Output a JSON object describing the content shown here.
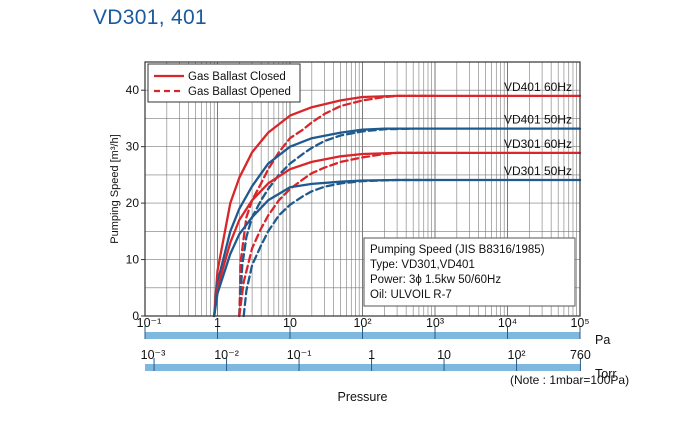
{
  "page_title": "VD301, 401",
  "colors": {
    "closed": "#d9262b",
    "blue": "#1f5a8f",
    "axis_bar": "#7fb8de",
    "grid": "#7a7a7a",
    "title": "#1a5a9e"
  },
  "chart_data": {
    "type": "line",
    "ylabel": "Pumping Speed [m³/h]",
    "xlabel": "Pressure",
    "ylim": [
      0,
      45
    ],
    "yticks": [
      0,
      10,
      20,
      30,
      40
    ],
    "xscale": "log",
    "xlim_pa": [
      0.1,
      100000
    ],
    "xticks_pa": [
      "10⁻¹",
      "1",
      "10",
      "10²",
      "10³",
      "10⁴",
      "10⁵"
    ],
    "xticks_torr": [
      "10⁻³",
      "10⁻²",
      "10⁻¹",
      "1",
      "10",
      "10²",
      "760"
    ],
    "unit_pa": "Pa",
    "unit_torr": "Torr",
    "note": "(Note : 1mbar=100Pa)",
    "grid": true,
    "legend": {
      "placement": "top-left",
      "entries": [
        {
          "label": "Gas Ballast Closed",
          "style": "solid"
        },
        {
          "label": "Gas Ballast Opened",
          "style": "dashed"
        }
      ]
    },
    "series": [
      {
        "name": "VD401 60Hz",
        "color": "red",
        "style": "solid",
        "x": [
          0.9,
          1.0,
          1.5,
          2,
          3,
          5,
          10,
          20,
          50,
          100,
          300,
          1000,
          100000
        ],
        "y": [
          0,
          8,
          20,
          24.5,
          29,
          32.5,
          35.5,
          37,
          38.2,
          38.8,
          39,
          39,
          39
        ]
      },
      {
        "name": "VD401 60Hz",
        "color": "red",
        "style": "dashed",
        "x": [
          2,
          2.1,
          2.5,
          3,
          4,
          5,
          7,
          10,
          15,
          20,
          30,
          50,
          100,
          200,
          300,
          1000
        ],
        "y": [
          0,
          10,
          17.5,
          20.5,
          23.5,
          26,
          29,
          31.5,
          33,
          34.3,
          35.8,
          37.2,
          38.2,
          38.8,
          39,
          39
        ]
      },
      {
        "name": "VD401 50Hz",
        "color": "blue",
        "style": "solid",
        "x": [
          0.9,
          1.0,
          1.5,
          2,
          3,
          5,
          10,
          20,
          50,
          100,
          200,
          500,
          100000
        ],
        "y": [
          0,
          6,
          15,
          19,
          23,
          27,
          30,
          31.5,
          32.5,
          33,
          33.2,
          33.2,
          33.2
        ]
      },
      {
        "name": "VD401 50Hz",
        "color": "blue",
        "style": "dashed",
        "x": [
          2,
          2.2,
          2.5,
          3,
          4,
          5,
          7,
          10,
          15,
          20,
          30,
          50,
          100,
          200,
          500
        ],
        "y": [
          0,
          9,
          14,
          17.5,
          20.5,
          22.5,
          25,
          27,
          28.7,
          29.8,
          31,
          32,
          32.7,
          33.1,
          33.2
        ]
      },
      {
        "name": "VD301 60Hz",
        "color": "red",
        "style": "solid",
        "x": [
          0.9,
          1.0,
          1.5,
          2,
          3,
          5,
          10,
          20,
          50,
          100,
          300,
          1000,
          100000
        ],
        "y": [
          0,
          5,
          13,
          17,
          20.5,
          23.5,
          26,
          27.3,
          28.3,
          28.7,
          28.9,
          28.9,
          28.9
        ]
      },
      {
        "name": "VD301 60Hz",
        "color": "red",
        "style": "dashed",
        "x": [
          2,
          2.3,
          3,
          4,
          5,
          7,
          10,
          15,
          20,
          30,
          50,
          100,
          200,
          300,
          1000
        ],
        "y": [
          0,
          6,
          12,
          15.5,
          17.8,
          20.5,
          22.5,
          24.2,
          25.3,
          26.3,
          27.3,
          28.1,
          28.7,
          28.9,
          28.9
        ]
      },
      {
        "name": "VD301 50Hz",
        "color": "blue",
        "style": "solid",
        "x": [
          0.9,
          1.0,
          1.5,
          2,
          3,
          5,
          10,
          20,
          50,
          100,
          300,
          1000,
          100000
        ],
        "y": [
          0,
          4,
          11,
          14.5,
          17.5,
          20.5,
          22.8,
          23.4,
          23.8,
          24,
          24.1,
          24.1,
          24.1
        ]
      },
      {
        "name": "VD301 50Hz",
        "color": "blue",
        "style": "dashed",
        "x": [
          2.3,
          2.5,
          3,
          4,
          5,
          7,
          10,
          15,
          20,
          30,
          50,
          100,
          300,
          1000
        ],
        "y": [
          0,
          4.5,
          9,
          12.5,
          15,
          17.8,
          19.7,
          21.2,
          22.1,
          22.9,
          23.5,
          23.9,
          24.1,
          24.1
        ]
      }
    ],
    "series_labels": [
      {
        "text": "VD401 60Hz",
        "y": 39
      },
      {
        "text": "VD401 50Hz",
        "y": 33.2
      },
      {
        "text": "VD301 60Hz",
        "y": 28.9
      },
      {
        "text": "VD301 50Hz",
        "y": 24.1
      }
    ],
    "info_box": {
      "lines": [
        "Pumping Speed (JIS B8316/1985)",
        "Type: VD301,VD401",
        "Power: 3ϕ 1.5kw 50/60Hz",
        "Oil: ULVOIL R-7"
      ]
    }
  }
}
